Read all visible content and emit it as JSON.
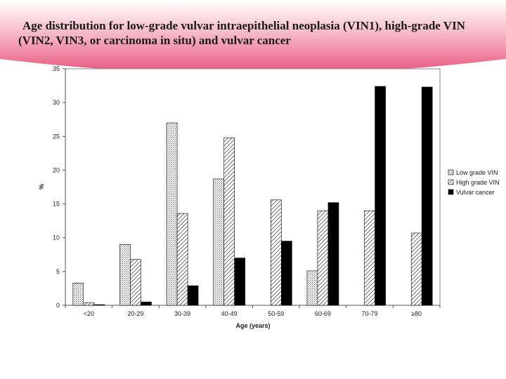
{
  "slide": {
    "title": "Age distribution for low-grade vulvar intraepithelial neoplasia (VIN1), high-grade VIN (VIN2, VIN3, or carcinoma in situ) and vulvar cancer",
    "banner_color": "#e8537b"
  },
  "chart_data": {
    "type": "bar",
    "title": "",
    "xlabel": "Age (years)",
    "ylabel": "%",
    "ylim": [
      0,
      35
    ],
    "yticks": [
      "0",
      "5",
      "10",
      "15",
      "20",
      "25",
      "30",
      "35"
    ],
    "categories": [
      "<20",
      "20-29",
      "30-39",
      "40-49",
      "50-59",
      "60-69",
      "70-79",
      "≥80"
    ],
    "grid": false,
    "legend_position": "right",
    "series": [
      {
        "name": "Low grade VIN",
        "values": [
          3.3,
          9.0,
          27.0,
          18.7,
          0,
          5.1,
          0,
          0
        ],
        "color": "#ffffff",
        "pattern": "dots"
      },
      {
        "name": "High grade VIN",
        "values": [
          0.4,
          6.8,
          13.6,
          24.8,
          15.6,
          14.0,
          14.0,
          10.7
        ],
        "color": "#ffffff",
        "pattern": "diagonal"
      },
      {
        "name": "Vulvar cancer",
        "values": [
          0.1,
          0.5,
          2.9,
          7.0,
          9.5,
          15.2,
          32.4,
          32.3
        ],
        "color": "#000000",
        "pattern": "solid"
      }
    ]
  }
}
